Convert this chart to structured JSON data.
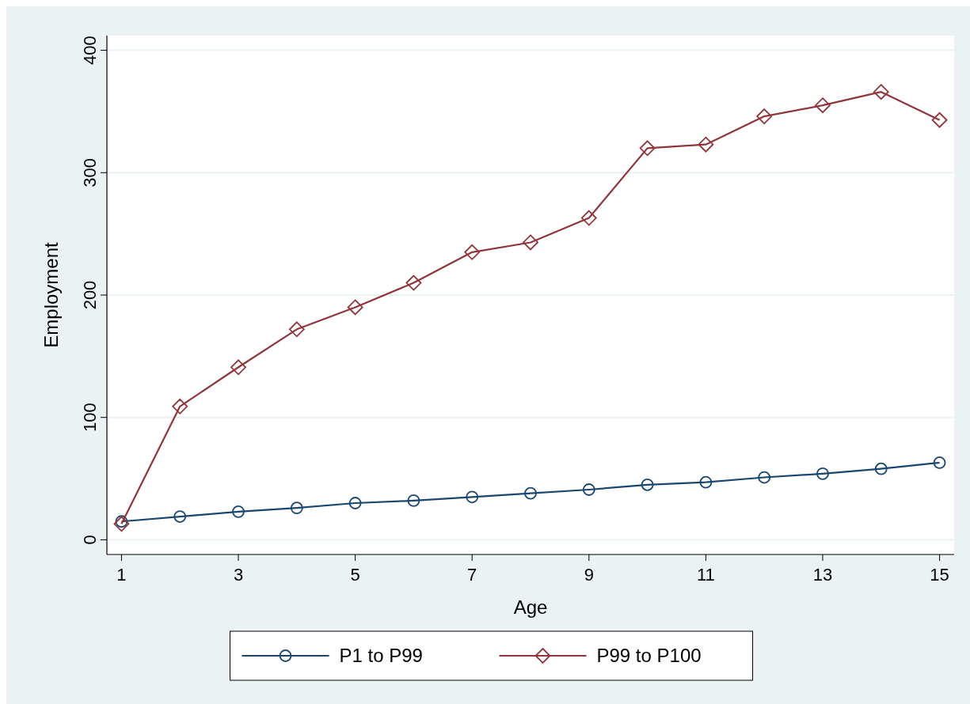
{
  "chart_data": {
    "type": "line",
    "xlabel": "Age",
    "ylabel": "Employment",
    "x": [
      1,
      2,
      3,
      4,
      5,
      6,
      7,
      8,
      9,
      10,
      11,
      12,
      13,
      14,
      15
    ],
    "xlim": [
      0.75,
      15.25
    ],
    "xticks": [
      1,
      3,
      5,
      7,
      9,
      11,
      13,
      15
    ],
    "ylim": [
      -12,
      412
    ],
    "yticks": [
      0,
      100,
      200,
      300,
      400
    ],
    "grid": "y",
    "legend": "bottom",
    "series": [
      {
        "name": "P1 to P99",
        "color": "#1a476f",
        "marker": "circle",
        "values": [
          15,
          19,
          23,
          26,
          30,
          32,
          35,
          38,
          41,
          45,
          47,
          51,
          54,
          58,
          63
        ]
      },
      {
        "name": "P99 to P100",
        "color": "#90353b",
        "marker": "diamond",
        "values": [
          13,
          109,
          141,
          172,
          190,
          210,
          235,
          243,
          263,
          320,
          323,
          346,
          355,
          366,
          343
        ]
      }
    ]
  }
}
